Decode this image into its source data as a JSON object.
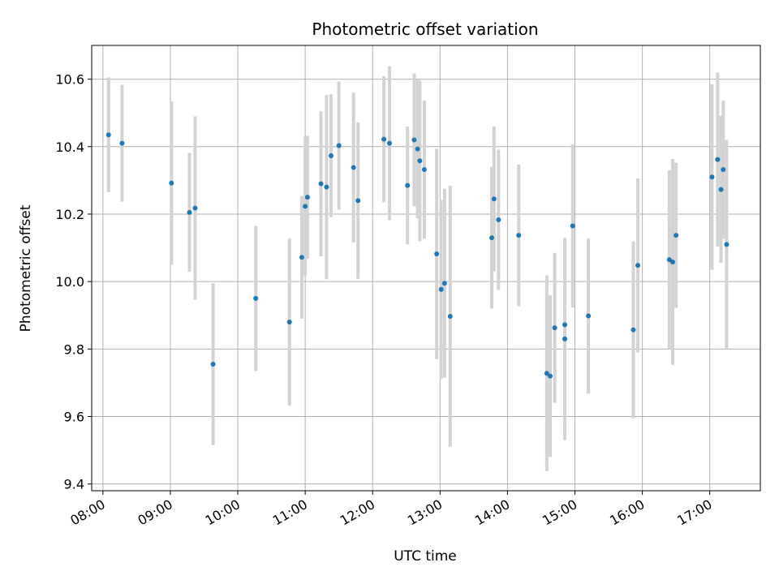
{
  "chart_data": {
    "type": "scatter",
    "title": "Photometric offset variation",
    "xlabel": "UTC time",
    "ylabel": "Photometric offset",
    "xlim": [
      "07:50",
      "17:45"
    ],
    "ylim": [
      9.38,
      10.7
    ],
    "grid": true,
    "x_ticks": [
      "08:00",
      "09:00",
      "10:00",
      "11:00",
      "12:00",
      "13:00",
      "14:00",
      "15:00",
      "16:00",
      "17:00"
    ],
    "y_ticks": [
      9.4,
      9.6,
      9.8,
      10.0,
      10.2,
      10.4,
      10.6
    ],
    "y_tick_labels": [
      "9.4",
      "9.6",
      "9.8",
      "10.0",
      "10.2",
      "10.4",
      "10.6"
    ],
    "marker_color": "#1f77b4",
    "errorbar_color": "#d3d3d3",
    "series": [
      {
        "x": [
          "08:05",
          "08:17",
          "09:01",
          "09:17",
          "09:22",
          "09:38",
          "10:16",
          "10:46",
          "10:57",
          "11:00",
          "11:02",
          "11:14",
          "11:19",
          "11:23",
          "11:30",
          "11:43",
          "11:47",
          "12:10",
          "12:15",
          "12:31",
          "12:37",
          "12:40",
          "12:42",
          "12:46",
          "12:57",
          "13:01",
          "13:04",
          "13:09",
          "13:46",
          "13:48",
          "13:52",
          "14:10",
          "14:35",
          "14:38",
          "14:42",
          "14:51",
          "14:51",
          "14:58",
          "15:12",
          "15:52",
          "15:56",
          "16:24",
          "16:27",
          "16:30",
          "17:02",
          "17:07",
          "17:10",
          "17:12",
          "17:15"
        ],
        "y": [
          10.435,
          10.41,
          10.292,
          10.205,
          10.218,
          9.755,
          9.95,
          9.88,
          10.072,
          10.223,
          10.25,
          10.29,
          10.28,
          10.373,
          10.403,
          10.338,
          10.24,
          10.422,
          10.41,
          10.285,
          10.42,
          10.393,
          10.358,
          10.332,
          10.082,
          9.977,
          9.995,
          9.897,
          10.13,
          10.245,
          10.183,
          10.137,
          9.728,
          9.72,
          9.863,
          9.83,
          9.872,
          10.165,
          9.898,
          9.857,
          10.048,
          10.065,
          10.058,
          10.137,
          10.31,
          10.362,
          10.273,
          10.332,
          10.11
        ],
        "err": [
          0.17,
          0.173,
          0.242,
          0.176,
          0.272,
          0.24,
          0.215,
          0.248,
          0.182,
          0.207,
          0.182,
          0.215,
          0.273,
          0.182,
          0.19,
          0.222,
          0.232,
          0.187,
          0.228,
          0.175,
          0.197,
          0.205,
          0.238,
          0.205,
          0.312,
          0.265,
          0.28,
          0.387,
          0.21,
          0.215,
          0.208,
          0.21,
          0.29,
          0.24,
          0.222,
          0.3,
          0.237,
          0.242,
          0.23,
          0.262,
          0.258,
          0.265,
          0.305,
          0.215,
          0.275,
          0.258,
          0.218,
          0.205,
          0.31
        ]
      }
    ]
  }
}
